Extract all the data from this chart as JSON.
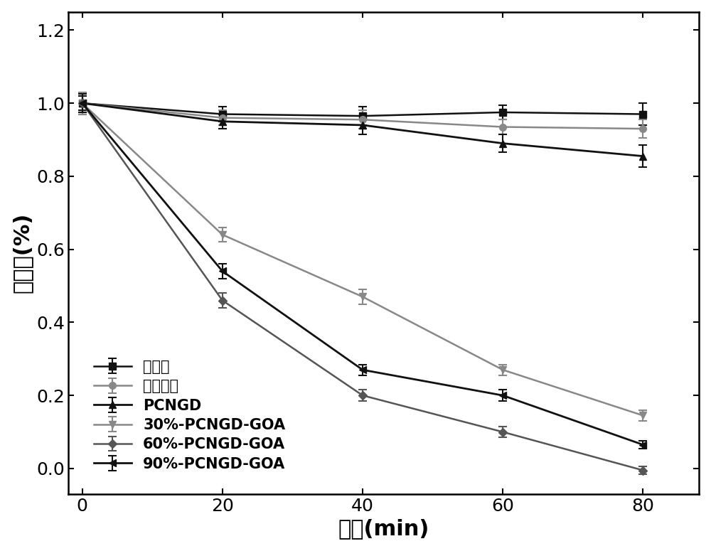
{
  "x": [
    0,
    20,
    40,
    60,
    80
  ],
  "series": [
    {
      "label": "光控制",
      "color": "#111111",
      "marker": "s",
      "markersize": 7,
      "linewidth": 1.8,
      "linestyle": "-",
      "y": [
        1.0,
        0.97,
        0.965,
        0.975,
        0.97
      ],
      "yerr": [
        0.03,
        0.02,
        0.025,
        0.02,
        0.03
      ]
    },
    {
      "label": "黑暗控制",
      "color": "#888888",
      "marker": "o",
      "markersize": 7,
      "linewidth": 1.8,
      "linestyle": "-",
      "y": [
        1.0,
        0.96,
        0.955,
        0.935,
        0.93
      ],
      "yerr": [
        0.03,
        0.02,
        0.025,
        0.02,
        0.025
      ]
    },
    {
      "label": "PCNGD",
      "color": "#111111",
      "marker": "^",
      "markersize": 7,
      "linewidth": 2.0,
      "linestyle": "-",
      "y": [
        1.0,
        0.95,
        0.94,
        0.89,
        0.855
      ],
      "yerr": [
        0.02,
        0.02,
        0.025,
        0.025,
        0.03
      ]
    },
    {
      "label": "30%-PCNGD-GOA",
      "color": "#888888",
      "marker": "v",
      "markersize": 7,
      "linewidth": 1.8,
      "linestyle": "-",
      "y": [
        1.0,
        0.64,
        0.47,
        0.27,
        0.145
      ],
      "yerr": [
        0.025,
        0.02,
        0.02,
        0.015,
        0.015
      ]
    },
    {
      "label": "60%-PCNGD-GOA",
      "color": "#555555",
      "marker": "D",
      "markersize": 6,
      "linewidth": 1.8,
      "linestyle": "-",
      "y": [
        1.0,
        0.46,
        0.2,
        0.1,
        -0.005
      ],
      "yerr": [
        0.025,
        0.02,
        0.015,
        0.015,
        0.01
      ]
    },
    {
      "label": "90%-PCNGD-GOA",
      "color": "#111111",
      "marker": "<",
      "markersize": 7,
      "linewidth": 2.0,
      "linestyle": "-",
      "y": [
        1.0,
        0.54,
        0.27,
        0.2,
        0.065
      ],
      "yerr": [
        0.025,
        0.02,
        0.015,
        0.015,
        0.01
      ]
    }
  ],
  "xlabel": "时间(min)",
  "ylabel": "存活率(%)",
  "xlim": [
    -2,
    88
  ],
  "ylim": [
    -0.07,
    1.25
  ],
  "xticks": [
    0,
    20,
    40,
    60,
    80
  ],
  "yticks": [
    0.0,
    0.2,
    0.4,
    0.6,
    0.8,
    1.0,
    1.2
  ],
  "xlabel_fontsize": 22,
  "ylabel_fontsize": 22,
  "tick_fontsize": 18,
  "legend_fontsize": 15,
  "background_color": "#ffffff"
}
